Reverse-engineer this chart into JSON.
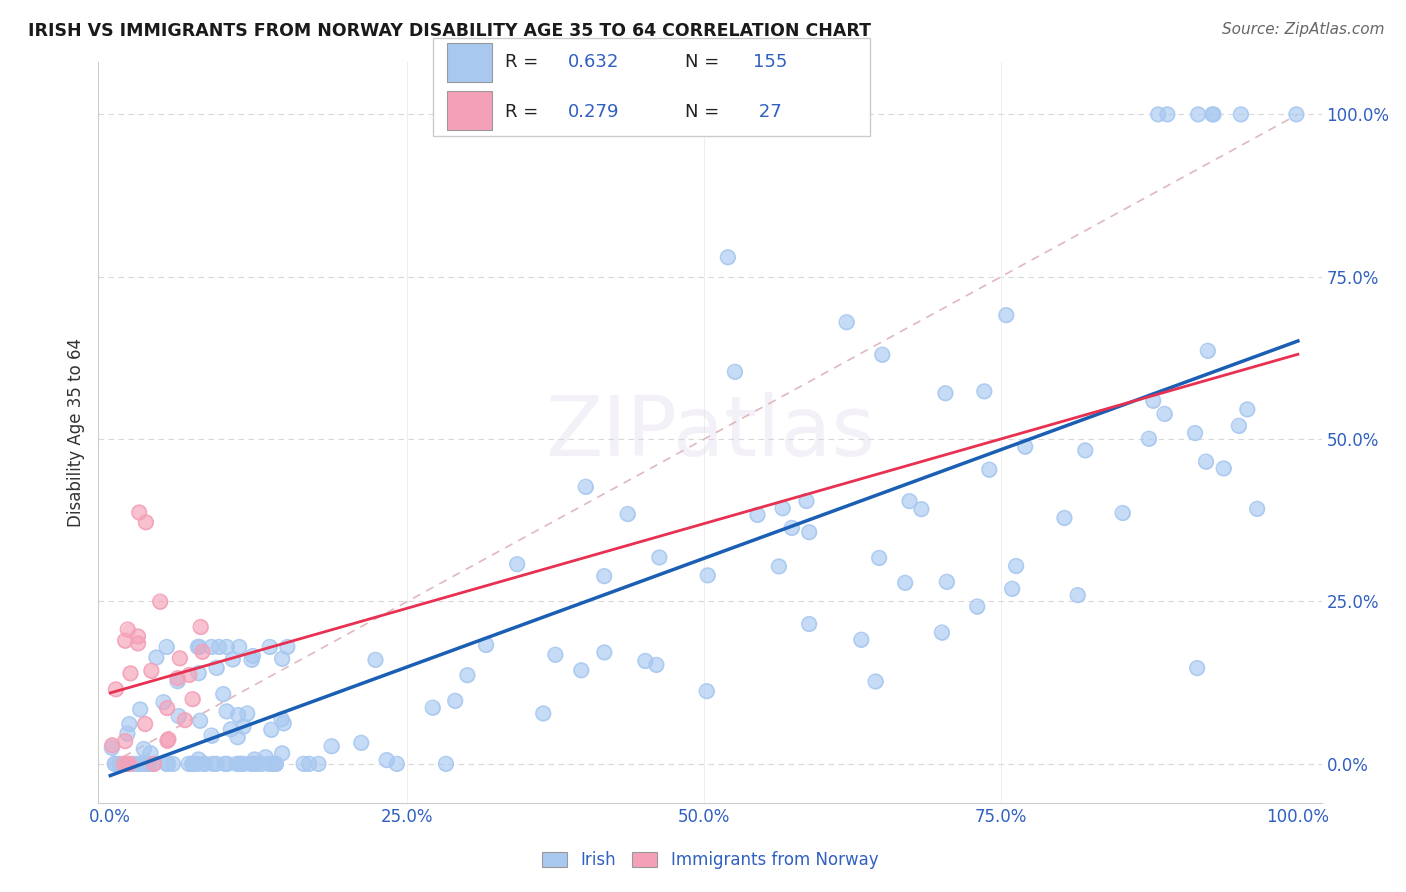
{
  "title": "IRISH VS IMMIGRANTS FROM NORWAY DISABILITY AGE 35 TO 64 CORRELATION CHART",
  "source": "Source: ZipAtlas.com",
  "ylabel": "Disability Age 35 to 64",
  "x_tick_labels": [
    "0.0%",
    "25.0%",
    "50.0%",
    "75.0%",
    "100.0%"
  ],
  "y_tick_labels": [
    "0.0%",
    "25.0%",
    "50.0%",
    "75.0%",
    "100.0%"
  ],
  "x_ticks": [
    0,
    0.25,
    0.5,
    0.75,
    1.0
  ],
  "y_ticks": [
    0,
    0.25,
    0.5,
    0.75,
    1.0
  ],
  "xlim": [
    -0.01,
    1.02
  ],
  "ylim": [
    -0.06,
    1.08
  ],
  "irish_R": 0.632,
  "irish_N": 155,
  "norway_R": 0.279,
  "norway_N": 27,
  "irish_color": "#a8c8f0",
  "norway_color": "#f4a0b8",
  "irish_line_color": "#1a5fb4",
  "norway_line_color": "#e83050",
  "diagonal_color": "#e0b8c0",
  "watermark": "ZIPatlas",
  "legend_irish_label": "Irish",
  "legend_norway_label": "Immigrants from Norway",
  "irish_seed": 12345,
  "norway_seed": 42
}
